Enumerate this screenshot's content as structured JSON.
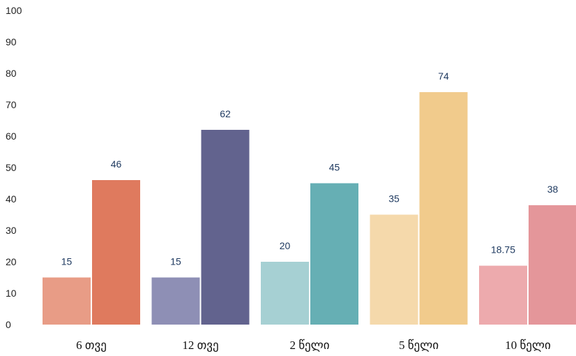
{
  "chart_data": {
    "type": "bar",
    "title": "",
    "xlabel": "",
    "ylabel": "",
    "ylim": [
      0,
      100
    ],
    "yticks": [
      0,
      10,
      20,
      30,
      40,
      50,
      60,
      70,
      80,
      90,
      100
    ],
    "grid": false,
    "legend": "none",
    "categories": [
      "6 თვე",
      "12 თვე",
      "2 წელი",
      "5 წელი",
      "10 წელი"
    ],
    "series": [
      {
        "values": [
          15,
          15,
          20,
          35,
          18.75
        ],
        "labels": [
          "15",
          "15",
          "20",
          "35",
          "18.75"
        ]
      },
      {
        "values": [
          46,
          62,
          45,
          74,
          38
        ],
        "labels": [
          "46",
          "62",
          "45",
          "74",
          "38"
        ]
      }
    ],
    "colors": {
      "series1": [
        "#e89c86",
        "#8e8fb5",
        "#a6d0d3",
        "#f5d9ab",
        "#edaaad"
      ],
      "series2": [
        "#df7a5e",
        "#62638e",
        "#66afb4",
        "#f1cb8c",
        "#e4969a"
      ]
    }
  }
}
